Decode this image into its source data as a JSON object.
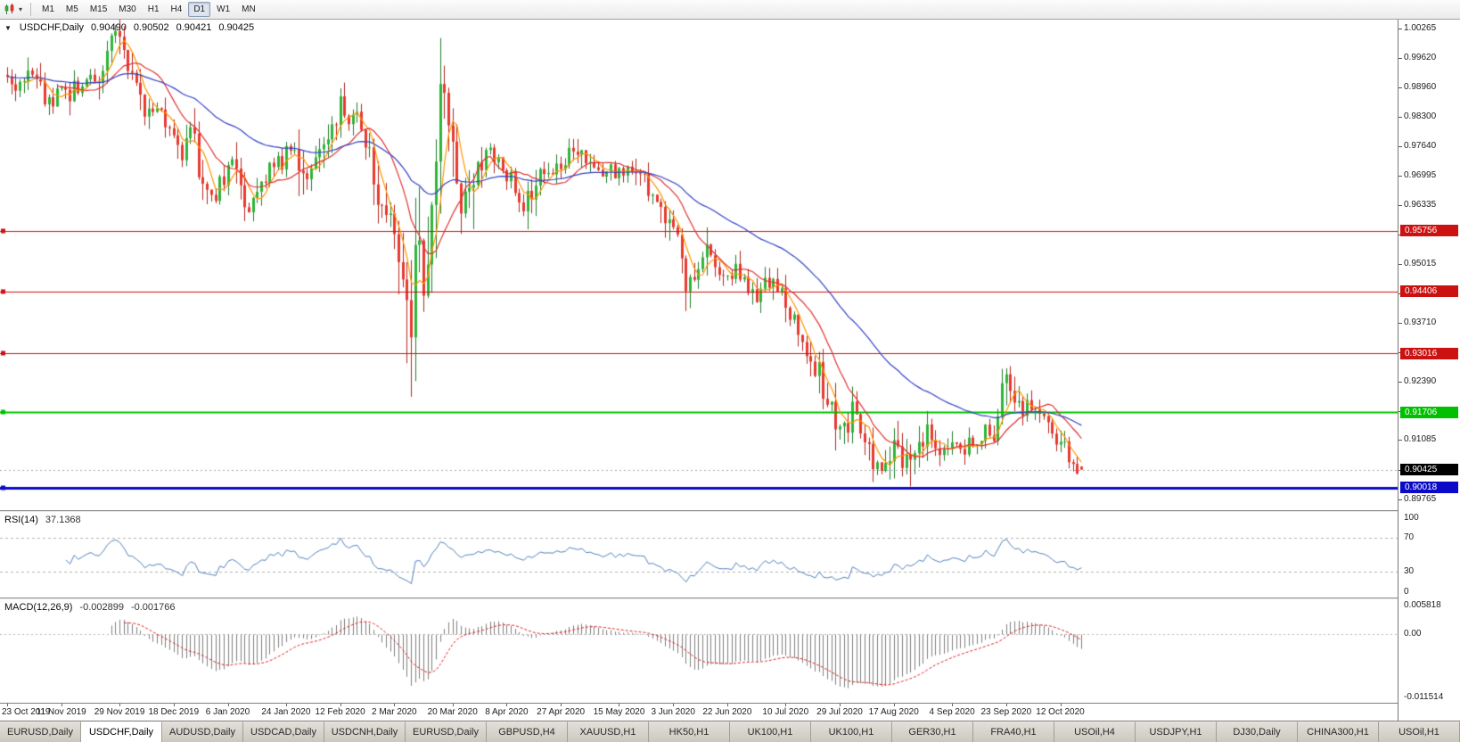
{
  "toolbar": {
    "timeframes": [
      "M1",
      "M5",
      "M15",
      "M30",
      "H1",
      "H4",
      "D1",
      "W1",
      "MN"
    ],
    "active_timeframe": "D1"
  },
  "icons": {
    "chart_mode_caret": "▾",
    "collapse_triangle": "▼"
  },
  "chart": {
    "symbol_period": "USDCHF,Daily",
    "ohlc": {
      "open": "0.90490",
      "high": "0.90502",
      "low": "0.90421",
      "close": "0.90425"
    }
  },
  "chart_data": {
    "type": "candlestick",
    "symbol": "USDCHF",
    "timeframe": "Daily",
    "bars_total": 259,
    "price_range_top": 1.0047,
    "price_range_bottom": 0.8952,
    "y_ticks": [
      "1.00265",
      "0.99620",
      "0.98960",
      "0.98300",
      "0.97640",
      "0.96995",
      "0.96335",
      "0.95675",
      "0.95015",
      "0.94355",
      "0.93710",
      "0.93050",
      "0.92390",
      "0.91730",
      "0.91085",
      "0.90425",
      "0.89765"
    ],
    "x_labels": [
      {
        "i": 0,
        "t": "23 Oct 2019"
      },
      {
        "i": 13,
        "t": "11 Nov 2019"
      },
      {
        "i": 27,
        "t": "29 Nov 2019"
      },
      {
        "i": 40,
        "t": "18 Dec 2019"
      },
      {
        "i": 53,
        "t": "6 Jan 2020"
      },
      {
        "i": 67,
        "t": "24 Jan 2020"
      },
      {
        "i": 80,
        "t": "12 Feb 2020"
      },
      {
        "i": 93,
        "t": "2 Mar 2020"
      },
      {
        "i": 107,
        "t": "20 Mar 2020"
      },
      {
        "i": 120,
        "t": "8 Apr 2020"
      },
      {
        "i": 133,
        "t": "27 Apr 2020"
      },
      {
        "i": 147,
        "t": "15 May 2020"
      },
      {
        "i": 160,
        "t": "3 Jun 2020"
      },
      {
        "i": 173,
        "t": "22 Jun 2020"
      },
      {
        "i": 187,
        "t": "10 Jul 2020"
      },
      {
        "i": 200,
        "t": "29 Jul 2020"
      },
      {
        "i": 213,
        "t": "17 Aug 2020"
      },
      {
        "i": 227,
        "t": "4 Sep 2020"
      },
      {
        "i": 240,
        "t": "23 Sep 2020"
      },
      {
        "i": 253,
        "t": "12 Oct 2020"
      }
    ],
    "h_lines": [
      {
        "price": 0.95756,
        "label": "0.95756",
        "color": "#cc1111",
        "width": 1
      },
      {
        "price": 0.94406,
        "label": "0.94406",
        "color": "#cc1111",
        "width": 1
      },
      {
        "price": 0.93016,
        "label": "0.93016",
        "color": "#cc1111",
        "width": 1
      },
      {
        "price": 0.91706,
        "label": "0.91706",
        "color": "#00c000",
        "width": 2
      },
      {
        "price": 0.90018,
        "label": "0.90018",
        "color": "#0a0ac8",
        "width": 3
      }
    ],
    "current_badge": {
      "price": 0.90425,
      "label": "0.90425",
      "color": "#000000"
    },
    "anchors": [
      [
        0,
        0.993
      ],
      [
        2,
        0.9885
      ],
      [
        4,
        0.9915
      ],
      [
        6,
        0.9945
      ],
      [
        8,
        0.989
      ],
      [
        10,
        0.9862
      ],
      [
        12,
        0.99
      ],
      [
        13,
        0.9905
      ],
      [
        15,
        0.9868
      ],
      [
        17,
        0.9902
      ],
      [
        19,
        0.9925
      ],
      [
        21,
        0.9905
      ],
      [
        23,
        0.9952
      ],
      [
        25,
        0.999
      ],
      [
        26,
        1.0012
      ],
      [
        28,
        0.997
      ],
      [
        30,
        0.9918
      ],
      [
        32,
        0.988
      ],
      [
        34,
        0.9838
      ],
      [
        36,
        0.9852
      ],
      [
        38,
        0.9812
      ],
      [
        40,
        0.979
      ],
      [
        42,
        0.9755
      ],
      [
        44,
        0.9788
      ],
      [
        46,
        0.973
      ],
      [
        48,
        0.9668
      ],
      [
        50,
        0.9655
      ],
      [
        52,
        0.9695
      ],
      [
        54,
        0.972
      ],
      [
        56,
        0.9668
      ],
      [
        58,
        0.9635
      ],
      [
        60,
        0.9665
      ],
      [
        62,
        0.97
      ],
      [
        64,
        0.9735
      ],
      [
        66,
        0.9718
      ],
      [
        67,
        0.974
      ],
      [
        69,
        0.9755
      ],
      [
        71,
        0.969
      ],
      [
        73,
        0.9715
      ],
      [
        75,
        0.9752
      ],
      [
        77,
        0.98
      ],
      [
        79,
        0.9838
      ],
      [
        80,
        0.9852
      ],
      [
        82,
        0.9822
      ],
      [
        84,
        0.9845
      ],
      [
        86,
        0.9792
      ],
      [
        88,
        0.9705
      ],
      [
        90,
        0.9632
      ],
      [
        92,
        0.957
      ],
      [
        93,
        0.959
      ],
      [
        94,
        0.9515
      ],
      [
        95,
        0.9468
      ],
      [
        96,
        0.94
      ],
      [
        97,
        0.9332
      ],
      [
        98,
        0.9425
      ],
      [
        99,
        0.952
      ],
      [
        100,
        0.9475
      ],
      [
        101,
        0.9558
      ],
      [
        102,
        0.9648
      ],
      [
        103,
        0.9735
      ],
      [
        104,
        0.9818
      ],
      [
        105,
        0.9885
      ],
      [
        106,
        0.9845
      ],
      [
        107,
        0.9788
      ],
      [
        108,
        0.9718
      ],
      [
        109,
        0.9648
      ],
      [
        110,
        0.9602
      ],
      [
        111,
        0.9632
      ],
      [
        112,
        0.9692
      ],
      [
        114,
        0.9745
      ],
      [
        116,
        0.9762
      ],
      [
        118,
        0.9715
      ],
      [
        120,
        0.97
      ],
      [
        122,
        0.9662
      ],
      [
        124,
        0.9632
      ],
      [
        126,
        0.9682
      ],
      [
        128,
        0.9722
      ],
      [
        130,
        0.9698
      ],
      [
        133,
        0.9728
      ],
      [
        136,
        0.9762
      ],
      [
        139,
        0.9722
      ],
      [
        142,
        0.9698
      ],
      [
        145,
        0.9728
      ],
      [
        147,
        0.9702
      ],
      [
        150,
        0.9722
      ],
      [
        153,
        0.9682
      ],
      [
        156,
        0.9645
      ],
      [
        158,
        0.9605
      ],
      [
        160,
        0.9565
      ],
      [
        162,
        0.9502
      ],
      [
        164,
        0.9428
      ],
      [
        166,
        0.9478
      ],
      [
        168,
        0.9525
      ],
      [
        170,
        0.9498
      ],
      [
        172,
        0.947
      ],
      [
        173,
        0.9465
      ],
      [
        175,
        0.9485
      ],
      [
        177,
        0.9452
      ],
      [
        179,
        0.9422
      ],
      [
        181,
        0.9445
      ],
      [
        183,
        0.9468
      ],
      [
        185,
        0.9442
      ],
      [
        187,
        0.9408
      ],
      [
        189,
        0.9378
      ],
      [
        191,
        0.9338
      ],
      [
        193,
        0.9298
      ],
      [
        195,
        0.9248
      ],
      [
        197,
        0.9188
      ],
      [
        199,
        0.9132
      ],
      [
        200,
        0.9108
      ],
      [
        202,
        0.915
      ],
      [
        204,
        0.9185
      ],
      [
        206,
        0.912
      ],
      [
        208,
        0.906
      ],
      [
        210,
        0.9048
      ],
      [
        212,
        0.9095
      ],
      [
        213,
        0.913
      ],
      [
        215,
        0.908
      ],
      [
        217,
        0.9042
      ],
      [
        219,
        0.9085
      ],
      [
        221,
        0.912
      ],
      [
        223,
        0.9098
      ],
      [
        225,
        0.9075
      ],
      [
        227,
        0.9102
      ],
      [
        229,
        0.9085
      ],
      [
        231,
        0.9112
      ],
      [
        233,
        0.9095
      ],
      [
        235,
        0.9125
      ],
      [
        237,
        0.9105
      ],
      [
        238,
        0.915
      ],
      [
        240,
        0.9225
      ],
      [
        241,
        0.9205
      ],
      [
        243,
        0.9165
      ],
      [
        245,
        0.9185
      ],
      [
        247,
        0.9165
      ],
      [
        249,
        0.915
      ],
      [
        251,
        0.912
      ],
      [
        253,
        0.9095
      ],
      [
        255,
        0.9065
      ],
      [
        257,
        0.9048
      ],
      [
        258,
        0.9043
      ]
    ],
    "wick_overrides": {
      "26": {
        "high": 1.0026
      },
      "96": {
        "low": 0.928
      },
      "97": {
        "low": 0.9205
      },
      "98": {
        "low": 0.924
      },
      "105": {
        "high": 0.9896
      },
      "164": {
        "low": 0.942
      },
      "210": {
        "low": 0.9032
      },
      "217": {
        "low": 0.9005
      }
    },
    "ma_lines": [
      {
        "kind": "sma",
        "period": 5,
        "color": "#ff9500"
      },
      {
        "kind": "sma",
        "period": 13,
        "color": "#e03030"
      },
      {
        "kind": "ema",
        "period": 45,
        "color": "#3341c4"
      }
    ],
    "colors": {
      "up": "#2eb538",
      "up_dark": "#1f7d2c",
      "down": "#e8392f",
      "down_dark": "#b3241c",
      "last_price_line": "#aaaaaa"
    }
  },
  "rsi": {
    "name": "RSI(14)",
    "value": "37.1368",
    "period": 14,
    "levels": [
      "100",
      "70",
      "30",
      "0"
    ],
    "line_color": "#4f81bd"
  },
  "macd": {
    "name": "MACD(12,26,9)",
    "main_value": "-0.002899",
    "signal_value": "-0.001766",
    "fast": 12,
    "slow": 26,
    "signal": 9,
    "scale_labels": [
      "0.005818",
      "0.00",
      "-0.011514"
    ],
    "bar_color": "#7f7f7f",
    "signal_color": "#dd2222"
  },
  "tabs": [
    {
      "label": "EURUSD,Daily",
      "active": false
    },
    {
      "label": "USDCHF,Daily",
      "active": true
    },
    {
      "label": "AUDUSD,Daily",
      "active": false
    },
    {
      "label": "USDCAD,Daily",
      "active": false
    },
    {
      "label": "USDCNH,Daily",
      "active": false
    },
    {
      "label": "EURUSD,Daily",
      "active": false
    },
    {
      "label": "GBPUSD,H4",
      "active": false
    },
    {
      "label": "XAUUSD,H1",
      "active": false
    },
    {
      "label": "HK50,H1",
      "active": false
    },
    {
      "label": "UK100,H1",
      "active": false
    },
    {
      "label": "UK100,H1",
      "active": false
    },
    {
      "label": "GER30,H1",
      "active": false
    },
    {
      "label": "FRA40,H1",
      "active": false
    },
    {
      "label": "USOil,H4",
      "active": false
    },
    {
      "label": "USDJPY,H1",
      "active": false
    },
    {
      "label": "DJ30,Daily",
      "active": false
    },
    {
      "label": "CHINA300,H1",
      "active": false
    },
    {
      "label": "USOil,H1",
      "active": false
    }
  ]
}
